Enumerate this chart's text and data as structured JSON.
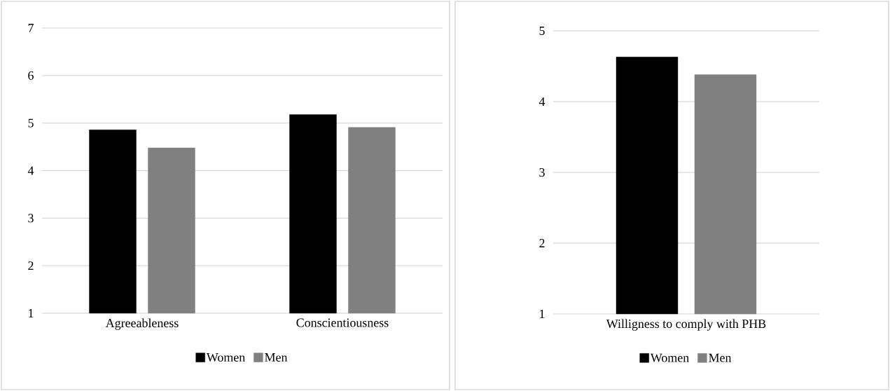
{
  "chart_data": [
    {
      "type": "bar",
      "categories": [
        "Agreeableness",
        "Conscientiousness"
      ],
      "series": [
        {
          "name": "Women",
          "color": "#000000",
          "values": [
            4.86,
            5.18
          ]
        },
        {
          "name": "Men",
          "color": "#808080",
          "values": [
            4.48,
            4.91
          ]
        }
      ],
      "ylim": [
        1,
        7
      ],
      "yticks": [
        1,
        2,
        3,
        4,
        5,
        6,
        7
      ],
      "grid": "y",
      "legend": "bottom"
    },
    {
      "type": "bar",
      "categories": [
        "Willigness to comply with PHB"
      ],
      "series": [
        {
          "name": "Women",
          "color": "#000000",
          "values": [
            4.63
          ]
        },
        {
          "name": "Men",
          "color": "#808080",
          "values": [
            4.38
          ]
        }
      ],
      "ylim": [
        1,
        5
      ],
      "yticks": [
        1,
        2,
        3,
        4,
        5
      ],
      "grid": "y",
      "legend": "bottom"
    }
  ]
}
